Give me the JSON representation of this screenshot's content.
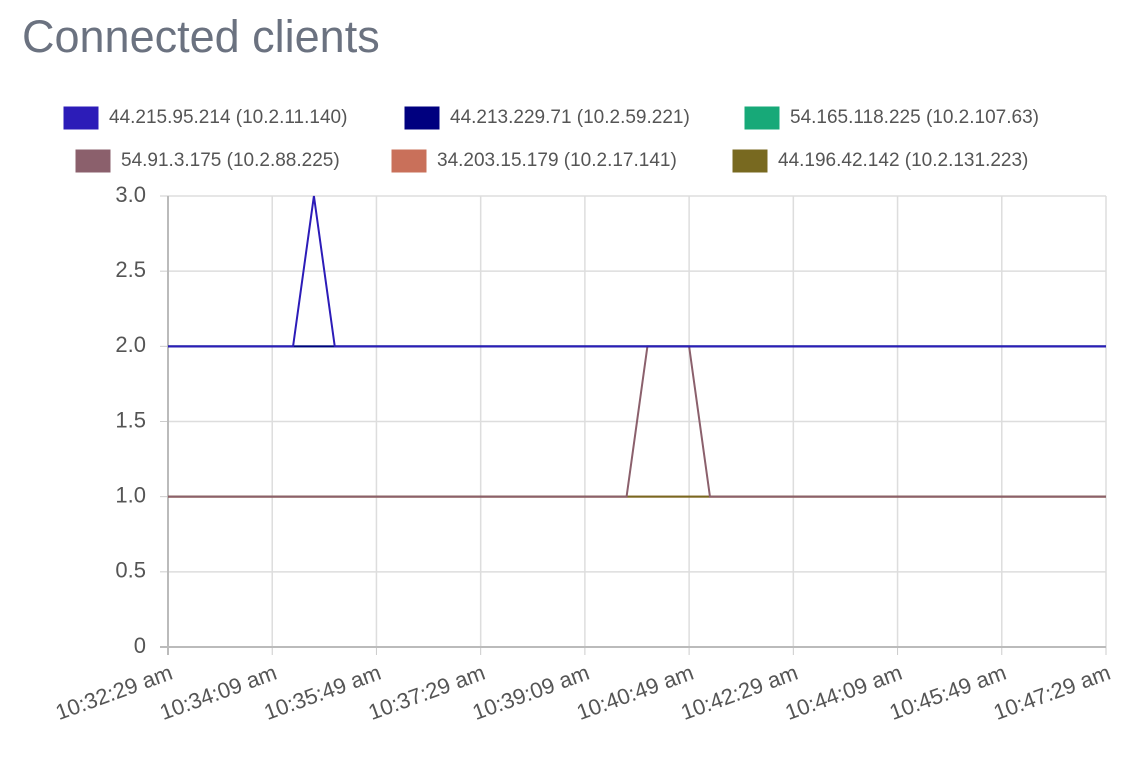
{
  "chart_data": {
    "type": "line",
    "title": "Connected clients",
    "categories": [
      "10:32:29 am",
      null,
      null,
      null,
      null,
      "10:34:09 am",
      null,
      null,
      null,
      null,
      "10:35:49 am",
      null,
      null,
      null,
      null,
      "10:37:29 am",
      null,
      null,
      null,
      null,
      "10:39:09 am",
      null,
      null,
      null,
      null,
      "10:40:49 am",
      null,
      null,
      null,
      null,
      "10:42:29 am",
      null,
      null,
      null,
      null,
      "10:44:09 am",
      null,
      null,
      null,
      null,
      "10:45:49 am",
      null,
      null,
      null,
      null,
      "10:47:29 am"
    ],
    "series": [
      {
        "name": "44.215.95.214 (10.2.11.140)",
        "color": "#2c1cb8",
        "values": [
          2,
          2,
          2,
          2,
          2,
          2,
          2,
          3,
          2,
          2,
          2,
          2,
          2,
          2,
          2,
          2,
          2,
          2,
          2,
          2,
          2,
          2,
          2,
          2,
          2,
          2,
          2,
          2,
          2,
          2,
          2,
          2,
          2,
          2,
          2,
          2,
          2,
          2,
          2,
          2,
          2,
          2,
          2,
          2,
          2,
          2
        ]
      },
      {
        "name": "44.213.229.71 (10.2.59.221)",
        "color": "#00007f",
        "values": [
          2,
          2,
          2,
          2,
          2,
          2,
          2,
          2,
          2,
          2,
          2,
          2,
          2,
          2,
          2,
          2,
          2,
          2,
          2,
          2,
          2,
          2,
          2,
          2,
          2,
          2,
          2,
          2,
          2,
          2,
          2,
          2,
          2,
          2,
          2,
          2,
          2,
          2,
          2,
          2,
          2,
          2,
          2,
          2,
          2,
          2
        ]
      },
      {
        "name": "54.165.118.225 (10.2.107.63)",
        "color": "#17a978",
        "values": [
          2,
          2,
          2,
          2,
          2,
          2,
          2,
          2,
          2,
          2,
          2,
          2,
          2,
          2,
          2,
          2,
          2,
          2,
          2,
          2,
          2,
          2,
          2,
          2,
          2,
          2,
          2,
          2,
          2,
          2,
          2,
          2,
          2,
          2,
          2,
          2,
          2,
          2,
          2,
          2,
          2,
          2,
          2,
          2,
          2,
          2
        ]
      },
      {
        "name": "54.91.3.175 (10.2.88.225)",
        "color": "#8b606c",
        "values": [
          1,
          1,
          1,
          1,
          1,
          1,
          1,
          1,
          1,
          1,
          1,
          1,
          1,
          1,
          1,
          1,
          1,
          1,
          1,
          1,
          1,
          1,
          1,
          2,
          2,
          2,
          1,
          1,
          1,
          1,
          1,
          1,
          1,
          1,
          1,
          1,
          1,
          1,
          1,
          1,
          1,
          1,
          1,
          1,
          1,
          1
        ]
      },
      {
        "name": "34.203.15.179 (10.2.17.141)",
        "color": "#c9705a",
        "values": [
          1,
          1,
          1,
          1,
          1,
          1,
          1,
          1,
          1,
          1,
          1,
          1,
          1,
          1,
          1,
          1,
          1,
          1,
          1,
          1,
          1,
          1,
          1,
          1,
          1,
          1,
          1,
          1,
          1,
          1,
          1,
          1,
          1,
          1,
          1,
          1,
          1,
          1,
          1,
          1,
          1,
          1,
          1,
          1,
          1,
          1
        ]
      },
      {
        "name": "44.196.42.142 (10.2.131.223)",
        "color": "#786920",
        "values": [
          1,
          1,
          1,
          1,
          1,
          1,
          1,
          1,
          1,
          1,
          1,
          1,
          1,
          1,
          1,
          1,
          1,
          1,
          1,
          1,
          1,
          1,
          1,
          1,
          1,
          1,
          1,
          1,
          1,
          1,
          1,
          1,
          1,
          1,
          1,
          1,
          1,
          1,
          1,
          1,
          1,
          1,
          1,
          1,
          1,
          1
        ]
      }
    ],
    "ylim": [
      0,
      3
    ],
    "yticks": [
      0,
      0.5,
      {
        "value": 1,
        "label": "1.0"
      },
      1.5,
      {
        "value": 2,
        "label": "2.0"
      },
      2.5,
      {
        "value": 3,
        "label": "3.0"
      }
    ],
    "grid": true
  }
}
